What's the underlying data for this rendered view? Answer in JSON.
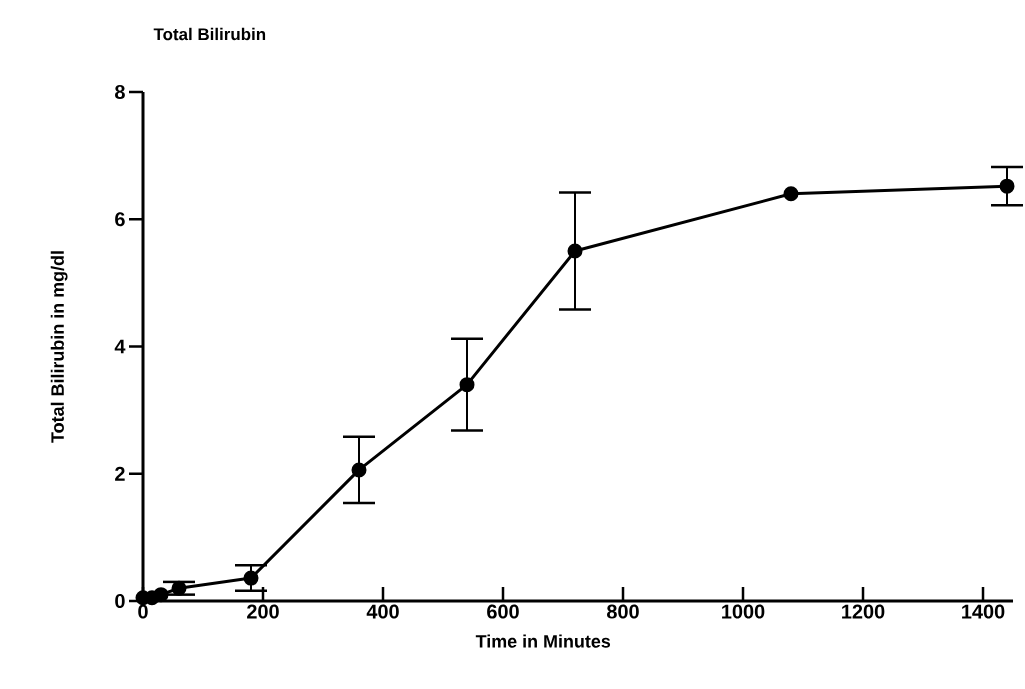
{
  "chart_data": {
    "type": "line",
    "title": "Total Bilirubin",
    "xlabel": "Time in Minutes",
    "ylabel": "Total Bilirubin in mg/dl",
    "x": [
      0,
      15,
      30,
      60,
      180,
      360,
      540,
      720,
      1080,
      1440
    ],
    "series": [
      {
        "color": "#000000",
        "values": [
          0.05,
          0.05,
          0.1,
          0.2,
          0.36,
          2.06,
          3.4,
          5.5,
          6.4,
          6.52
        ],
        "errors": [
          null,
          null,
          null,
          0.1,
          0.2,
          0.52,
          0.72,
          0.92,
          null,
          0.3
        ]
      }
    ],
    "xlim": [
      0,
      1450
    ],
    "ylim": [
      0,
      8
    ],
    "xticks": [
      0,
      200,
      400,
      600,
      800,
      1000,
      1200,
      1400
    ],
    "yticks": [
      0,
      2,
      4,
      6,
      8
    ],
    "marker": "circle",
    "line_style": "solid",
    "grid": false
  }
}
